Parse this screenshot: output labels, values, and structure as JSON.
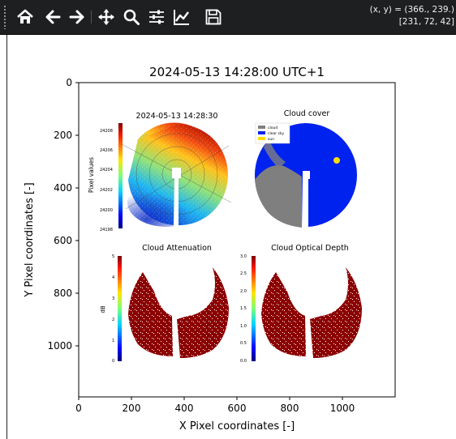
{
  "toolbar": {
    "buttons": [
      {
        "name": "home-icon",
        "label": "Home"
      },
      {
        "name": "back-icon",
        "label": "Back"
      },
      {
        "name": "forward-icon",
        "label": "Forward"
      },
      {
        "name": "pan-icon",
        "label": "Pan"
      },
      {
        "name": "zoom-icon",
        "label": "Zoom"
      },
      {
        "name": "configure-subplots-icon",
        "label": "Subplots"
      },
      {
        "name": "edit-axis-icon",
        "label": "Customize"
      },
      {
        "name": "save-icon",
        "label": "Save"
      }
    ],
    "coord_line1": "(x, y) = (366., 239.)",
    "coord_line2": "[231, 72, 42]"
  },
  "figure": {
    "title": "2024-05-13 14:28:00 UTC+1",
    "xlabel": "X Pixel coordinates [-]",
    "ylabel": "Y Pixel coordinates [-]",
    "x_ticks": [
      "0",
      "200",
      "400",
      "600",
      "800",
      "1000"
    ],
    "y_ticks": [
      "0",
      "200",
      "400",
      "600",
      "800",
      "1000"
    ]
  },
  "panels": {
    "pixel_values": {
      "title": "2024-05-13 14:28:30",
      "cbar_label": "Pixel values",
      "ticks": [
        "24208",
        "24206",
        "24204",
        "24202",
        "24200",
        "24198"
      ]
    },
    "cloud_cover": {
      "title": "Cloud cover",
      "legend": [
        "cloud",
        "clear sky",
        "sun"
      ],
      "colors": {
        "cloud": "#808080",
        "clear": "#0022ee",
        "sun": "#ffdd00"
      }
    },
    "attenuation": {
      "title": "Cloud Attenuation",
      "cbar_label": "dB",
      "ticks": [
        "5",
        "4",
        "3",
        "2",
        "1",
        "0"
      ]
    },
    "optical_depth": {
      "title": "Cloud Optical Depth",
      "ticks": [
        "3.0",
        "2.5",
        "2.0",
        "1.5",
        "1.0",
        "0.5",
        "0.0"
      ]
    }
  },
  "colors": {
    "toolbar_bg": "#1d1f21",
    "dark_red": "#8b0000"
  }
}
